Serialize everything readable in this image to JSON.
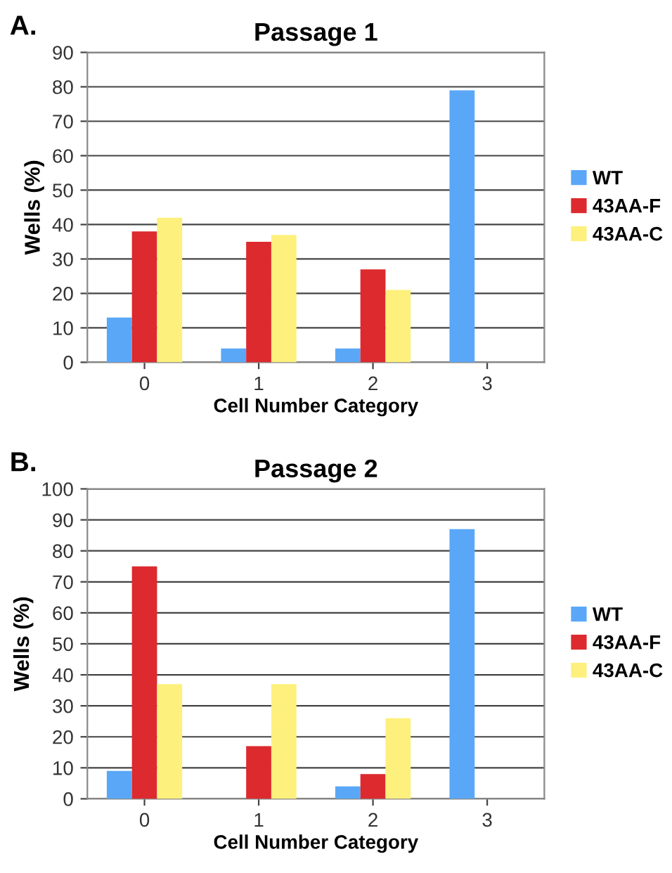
{
  "chart_data": [
    {
      "type": "bar",
      "title": "Passage 1",
      "xlabel": "Cell Number Category",
      "ylabel": "Wells (%)",
      "annotations": [
        "A."
      ],
      "categories": [
        "0",
        "1",
        "2",
        "3"
      ],
      "series": [
        {
          "name": "WT",
          "color": "#5aa7f8",
          "values": [
            13,
            4,
            4,
            79
          ]
        },
        {
          "name": "43AA-F",
          "color": "#dc2a2e",
          "values": [
            38,
            35,
            27,
            0
          ]
        },
        {
          "name": "43AA-C",
          "color": "#fdf07c",
          "values": [
            42,
            37,
            21,
            0
          ]
        }
      ],
      "ylim": [
        0,
        90
      ],
      "yticks": [
        0,
        10,
        20,
        30,
        40,
        50,
        60,
        70,
        80,
        90
      ],
      "grid": "y",
      "legend": "right"
    },
    {
      "type": "bar",
      "title": "Passage 2",
      "xlabel": "Cell Number Category",
      "ylabel": "Wells (%)",
      "annotations": [
        "B."
      ],
      "categories": [
        "0",
        "1",
        "2",
        "3"
      ],
      "series": [
        {
          "name": "WT",
          "color": "#5aa7f8",
          "values": [
            9,
            0,
            4,
            87
          ]
        },
        {
          "name": "43AA-F",
          "color": "#dc2a2e",
          "values": [
            75,
            17,
            8,
            0
          ]
        },
        {
          "name": "43AA-C",
          "color": "#fdf07c",
          "values": [
            37,
            37,
            26,
            0
          ]
        }
      ],
      "ylim": [
        0,
        100
      ],
      "yticks": [
        0,
        10,
        20,
        30,
        40,
        50,
        60,
        70,
        80,
        90,
        100
      ],
      "grid": "y",
      "legend": "right"
    }
  ]
}
